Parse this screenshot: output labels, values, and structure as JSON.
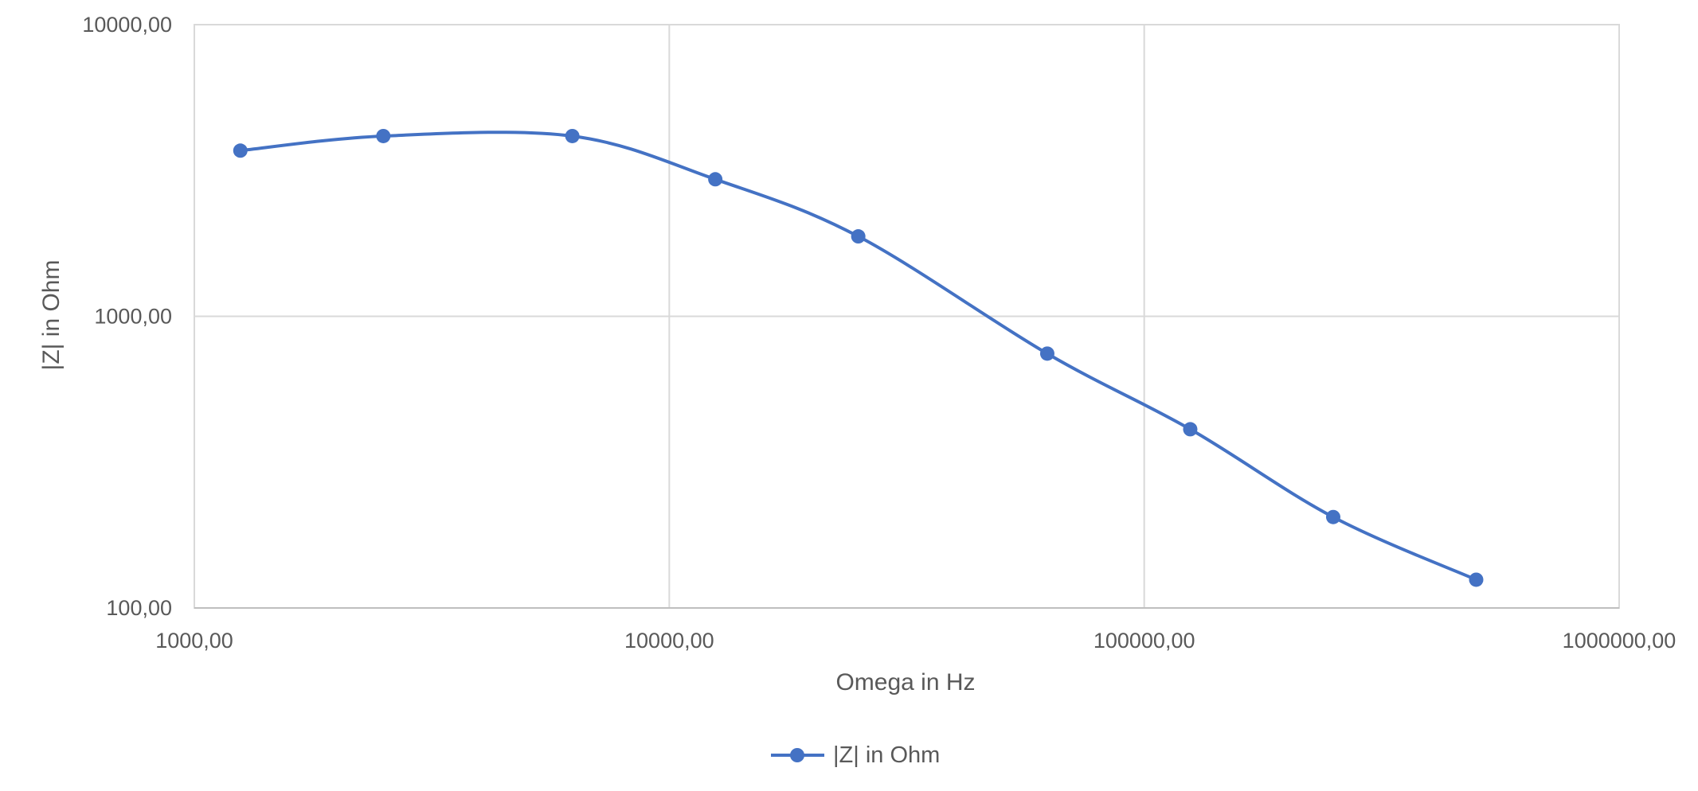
{
  "chart_data": {
    "type": "line",
    "x_scale": "log",
    "y_scale": "log",
    "xlabel": "Omega in Hz",
    "ylabel": "|Z| in Ohm",
    "xlim": [
      1000,
      1000000
    ],
    "ylim": [
      100,
      10000
    ],
    "x_ticks": [
      1000,
      10000,
      100000,
      1000000
    ],
    "x_tick_labels": [
      "1000,00",
      "10000,00",
      "100000,00",
      "1000000,00"
    ],
    "y_ticks": [
      100,
      1000,
      10000
    ],
    "y_tick_labels": [
      "100,00",
      "1000,00",
      "10000,00"
    ],
    "grid": true,
    "legend": "bottom",
    "series": [
      {
        "name": "|Z| in Ohm",
        "color": "#4472C4",
        "smooth": true,
        "marker": "circle",
        "x": [
          1250,
          2500,
          6250,
          12500,
          25000,
          62500,
          125000,
          250000,
          500000
        ],
        "y": [
          3700,
          4150,
          4150,
          2950,
          1880,
          745,
          410,
          205,
          125
        ]
      }
    ]
  }
}
